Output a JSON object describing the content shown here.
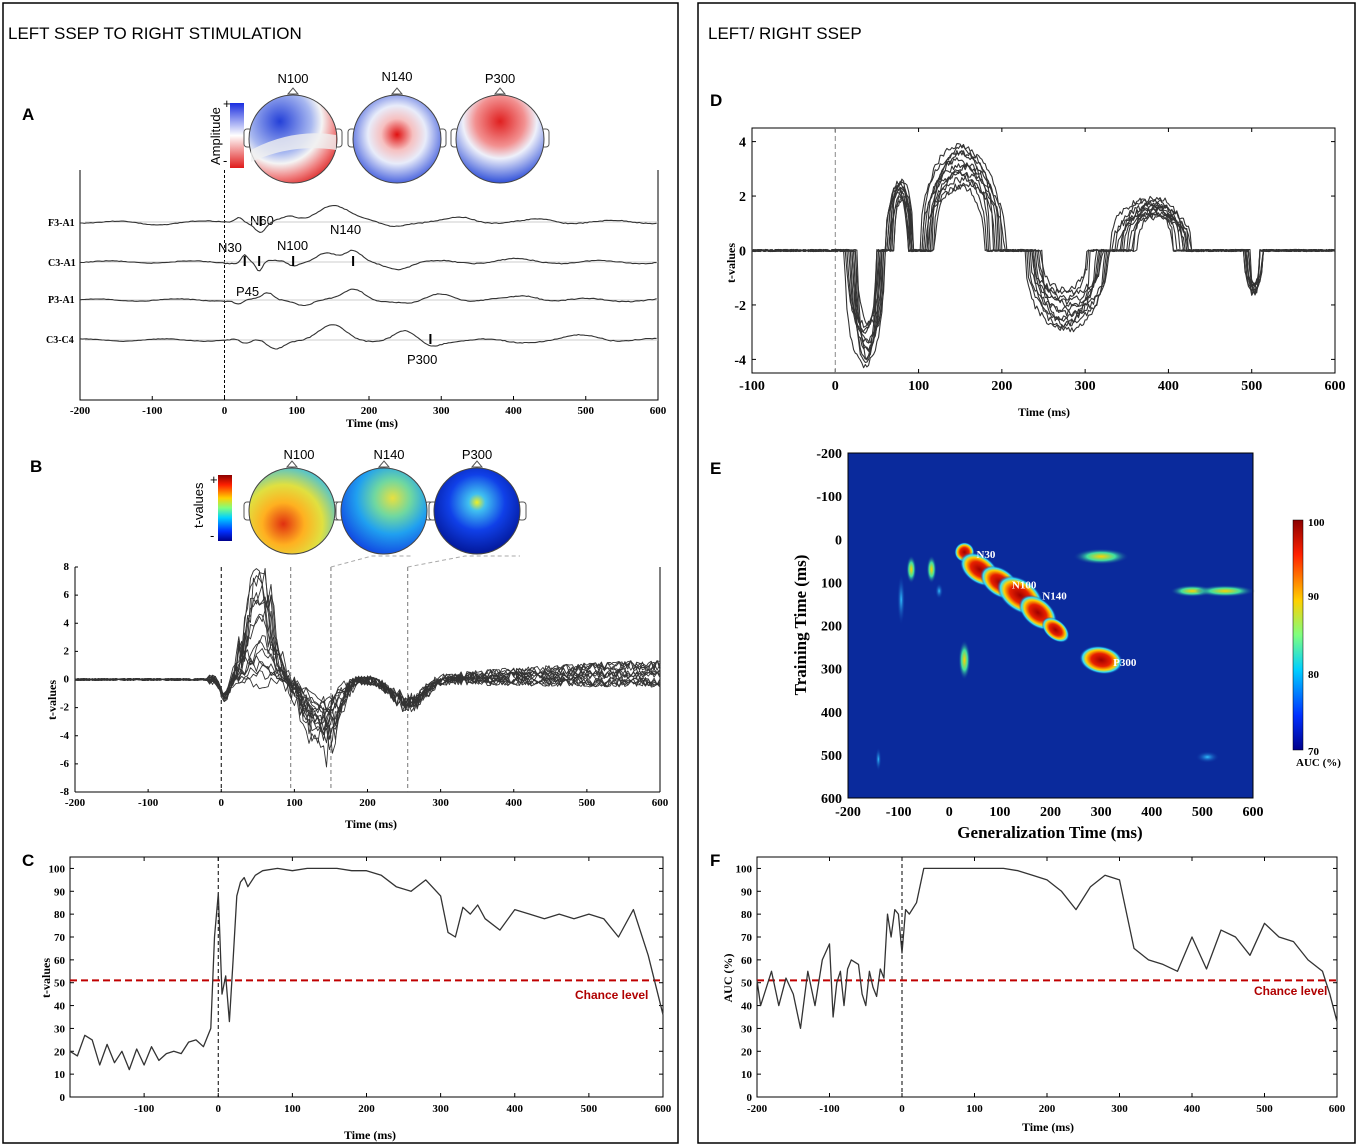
{
  "left_title": "LEFT SSEP TO RIGHT STIMULATION",
  "right_title": "LEFT/ RIGHT SSEP",
  "panels": {
    "A": "A",
    "B": "B",
    "C": "C",
    "D": "D",
    "E": "E",
    "F": "F"
  },
  "colors": {
    "trace": "#333333",
    "chance": "#c00000",
    "heat_bg": "#0a2a9c",
    "hot": "#b00000"
  },
  "chart_data": [
    {
      "id": "A",
      "type": "line",
      "topomaps": [
        "N100",
        "N140",
        "P300"
      ],
      "colorbar_label": "Amplitude",
      "colorbar_ticks": [
        "+",
        "-"
      ],
      "channels": [
        "F3-A1",
        "C3-A1",
        "P3-A1",
        "C3-C4"
      ],
      "annotations": [
        {
          "label": "N60",
          "channel": "F3-A1",
          "x": 50
        },
        {
          "label": "N30",
          "channel": "C3-A1",
          "x": 28
        },
        {
          "label": "P45",
          "channel": "C3-A1",
          "x": 48
        },
        {
          "label": "N100",
          "channel": "C3-A1",
          "x": 95
        },
        {
          "label": "N140",
          "channel": "C3-A1",
          "x": 178
        },
        {
          "label": "P300",
          "channel": "C3-C4",
          "x": 285
        }
      ],
      "xlabel": "Time (ms)",
      "xlim": [
        -200,
        600
      ],
      "xticks": [
        "-200",
        "-100",
        "0",
        "100",
        "200",
        "300",
        "400",
        "500",
        "600"
      ]
    },
    {
      "id": "B",
      "type": "line",
      "topomaps": [
        "N100",
        "N140",
        "P300"
      ],
      "colorbar_label": "t-values",
      "colorbar_ticks": [
        "+",
        "-"
      ],
      "ylabel": "t-values",
      "ylim": [
        -8,
        8
      ],
      "yticks": [
        "8",
        "6",
        "4",
        "2",
        "0",
        "-2",
        "-4",
        "-6",
        "-8"
      ],
      "xlabel": "Time (ms)",
      "xlim": [
        -200,
        600
      ],
      "xticks": [
        "-200",
        "-100",
        "0",
        "100",
        "200",
        "300",
        "400",
        "500",
        "600"
      ],
      "markers": [
        0,
        95,
        150,
        255
      ],
      "n_series": 16
    },
    {
      "id": "C",
      "type": "line",
      "ylabel": "t-values",
      "ylim": [
        0,
        105
      ],
      "yticks": [
        "100",
        "90",
        "80",
        "70",
        "60",
        "50",
        "40",
        "30",
        "20",
        "10",
        "0"
      ],
      "xlabel": "Time (ms)",
      "xlim": [
        -200,
        600
      ],
      "xticks": [
        "-100",
        "0",
        "100",
        "200",
        "300",
        "400",
        "500",
        "600"
      ],
      "chance_level": 51,
      "chance_label": "Chance level",
      "x": [
        -200,
        -190,
        -180,
        -170,
        -160,
        -150,
        -140,
        -130,
        -120,
        -110,
        -100,
        -90,
        -80,
        -70,
        -60,
        -50,
        -40,
        -30,
        -20,
        -10,
        -5,
        0,
        5,
        10,
        15,
        20,
        25,
        30,
        35,
        40,
        50,
        60,
        80,
        100,
        120,
        140,
        160,
        180,
        200,
        220,
        240,
        260,
        280,
        300,
        310,
        320,
        330,
        340,
        350,
        360,
        380,
        400,
        420,
        440,
        460,
        480,
        500,
        520,
        540,
        560,
        580,
        600
      ],
      "y": [
        20,
        18,
        27,
        25,
        14,
        23,
        15,
        20,
        12,
        21,
        14,
        22,
        16,
        19,
        20,
        19,
        24,
        25,
        22,
        30,
        70,
        89,
        45,
        53,
        33,
        60,
        88,
        94,
        96,
        92,
        97,
        99,
        100,
        99,
        100,
        100,
        100,
        99,
        99,
        97,
        92,
        90,
        95,
        88,
        72,
        70,
        83,
        80,
        84,
        78,
        73,
        82,
        80,
        78,
        80,
        78,
        80,
        78,
        70,
        82,
        62,
        36
      ]
    },
    {
      "id": "D",
      "type": "line",
      "ylabel": "t-values",
      "ylim": [
        -4.5,
        4.5
      ],
      "yticks": [
        "4",
        "2",
        "0",
        "-2",
        "-4"
      ],
      "xlabel": "Time (ms)",
      "xlim": [
        -100,
        600
      ],
      "xticks": [
        "-100",
        "0",
        "100",
        "200",
        "300",
        "400",
        "500",
        "600"
      ],
      "n_series": 12
    },
    {
      "id": "E",
      "type": "heatmap",
      "xlabel": "Generalization Time (ms)",
      "ylabel": "Training Time (ms)",
      "xlim": [
        -200,
        600
      ],
      "ylim": [
        -200,
        600
      ],
      "xticks": [
        "-200",
        "-100",
        "0",
        "100",
        "200",
        "300",
        "400",
        "500",
        "600"
      ],
      "yticks": [
        "-200",
        "-100",
        "0",
        "100",
        "200",
        "300",
        "400",
        "500",
        "600"
      ],
      "colorbar_label": "AUC (%)",
      "colorbar_ticks": [
        "100",
        "90",
        "80",
        "70"
      ],
      "annotations": [
        {
          "label": "N30",
          "x": 30,
          "y": 30
        },
        {
          "label": "N100",
          "x": 100,
          "y": 100
        },
        {
          "label": "N140",
          "x": 160,
          "y": 140
        },
        {
          "label": "P300",
          "x": 300,
          "y": 280
        }
      ]
    },
    {
      "id": "F",
      "type": "line",
      "ylabel": "AUC (%)",
      "ylim": [
        0,
        105
      ],
      "yticks": [
        "100",
        "90",
        "80",
        "70",
        "60",
        "50",
        "40",
        "30",
        "20",
        "10",
        "0"
      ],
      "xlabel": "Time (ms)",
      "xlim": [
        -200,
        600
      ],
      "xticks": [
        "-200",
        "-100",
        "0",
        "100",
        "200",
        "300",
        "400",
        "500",
        "600"
      ],
      "chance_level": 51,
      "chance_label": "Chance level",
      "x": [
        -200,
        -195,
        -190,
        -180,
        -170,
        -160,
        -150,
        -140,
        -130,
        -120,
        -110,
        -100,
        -95,
        -90,
        -85,
        -80,
        -75,
        -70,
        -60,
        -55,
        -50,
        -45,
        -40,
        -35,
        -30,
        -25,
        -20,
        -15,
        -10,
        -5,
        0,
        5,
        10,
        20,
        30,
        40,
        50,
        60,
        80,
        100,
        120,
        140,
        160,
        180,
        200,
        220,
        240,
        260,
        280,
        300,
        320,
        340,
        360,
        380,
        400,
        420,
        440,
        460,
        480,
        500,
        520,
        540,
        560,
        580,
        590,
        600
      ],
      "y": [
        51,
        40,
        45,
        55,
        40,
        52,
        45,
        30,
        55,
        40,
        60,
        67,
        35,
        50,
        55,
        40,
        56,
        60,
        58,
        45,
        40,
        55,
        48,
        44,
        56,
        52,
        80,
        70,
        82,
        80,
        63,
        82,
        80,
        85,
        100,
        100,
        100,
        100,
        100,
        100,
        100,
        100,
        99,
        97,
        95,
        90,
        82,
        92,
        97,
        95,
        65,
        60,
        58,
        55,
        70,
        56,
        73,
        70,
        62,
        76,
        70,
        68,
        60,
        55,
        45,
        33
      ]
    }
  ]
}
